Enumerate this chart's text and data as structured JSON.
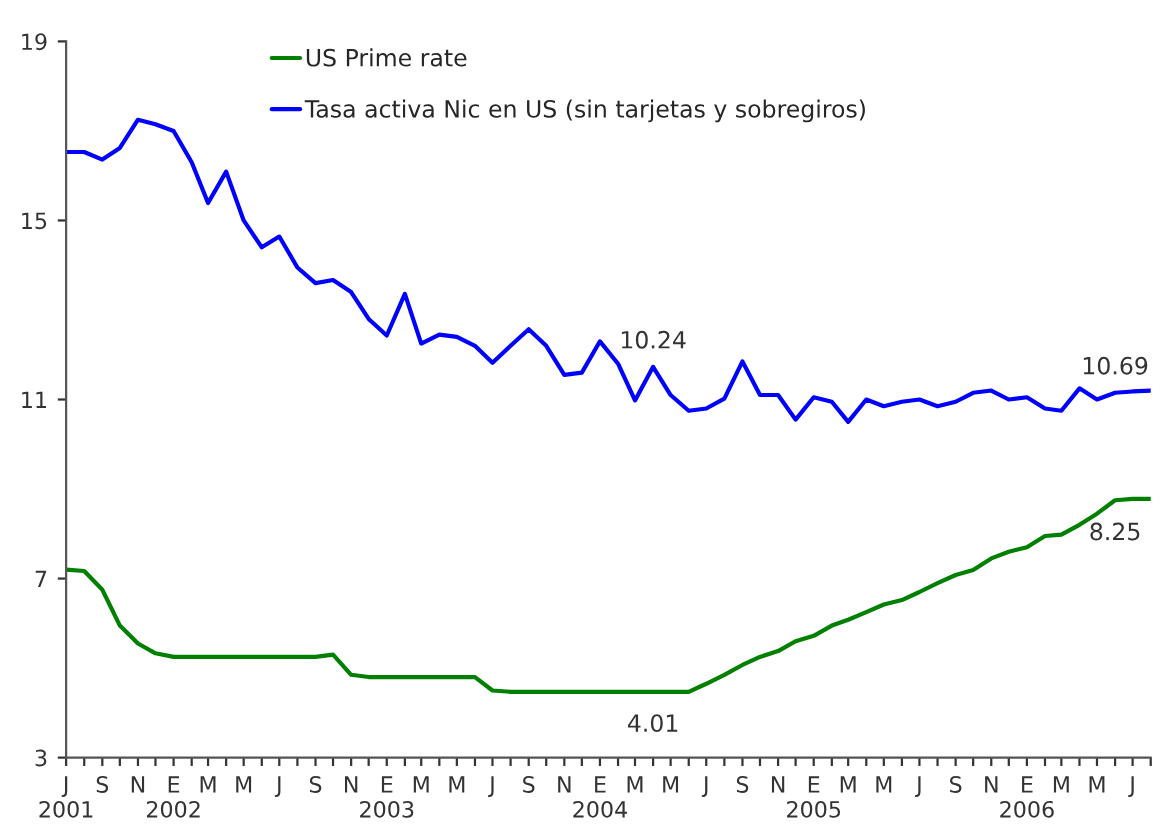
{
  "chart_data": {
    "type": "line",
    "x": [
      "2001-07",
      "2001-08",
      "2001-09",
      "2001-10",
      "2001-11",
      "2001-12",
      "2002-01",
      "2002-02",
      "2002-03",
      "2002-04",
      "2002-05",
      "2002-06",
      "2002-07",
      "2002-08",
      "2002-09",
      "2002-10",
      "2002-11",
      "2002-12",
      "2003-01",
      "2003-02",
      "2003-03",
      "2003-04",
      "2003-05",
      "2003-06",
      "2003-07",
      "2003-08",
      "2003-09",
      "2003-10",
      "2003-11",
      "2003-12",
      "2004-01",
      "2004-02",
      "2004-03",
      "2004-04",
      "2004-05",
      "2004-06",
      "2004-07",
      "2004-08",
      "2004-09",
      "2004-10",
      "2004-11",
      "2004-12",
      "2005-01",
      "2005-02",
      "2005-03",
      "2005-04",
      "2005-05",
      "2005-06",
      "2005-07",
      "2005-08",
      "2005-09",
      "2005-10",
      "2005-11",
      "2005-12",
      "2006-01",
      "2006-02",
      "2006-03",
      "2006-04",
      "2006-05",
      "2006-06",
      "2006-07",
      "2006-08"
    ],
    "series": [
      {
        "name": "US Prime rate",
        "color": "#008000",
        "values": [
          7.2,
          7.17,
          6.75,
          5.95,
          5.55,
          5.33,
          5.25,
          5.25,
          5.25,
          5.25,
          5.25,
          5.25,
          5.25,
          5.25,
          5.25,
          5.3,
          4.85,
          4.8,
          4.8,
          4.8,
          4.8,
          4.8,
          4.8,
          4.8,
          4.5,
          4.47,
          4.47,
          4.47,
          4.47,
          4.47,
          4.47,
          4.47,
          4.47,
          4.47,
          4.47,
          4.47,
          4.65,
          4.85,
          5.07,
          5.25,
          5.38,
          5.6,
          5.72,
          5.95,
          6.08,
          6.25,
          6.42,
          6.52,
          6.7,
          6.9,
          7.08,
          7.19,
          7.45,
          7.6,
          7.7,
          7.95,
          7.98,
          8.2,
          8.45,
          8.75,
          8.78,
          8.78
        ]
      },
      {
        "name": "Tasa activa Nic en US (sin tarjetas y sobregiros)",
        "color": "#0000ff",
        "values": [
          16.53,
          16.53,
          16.36,
          16.62,
          17.25,
          17.15,
          17.0,
          16.3,
          15.39,
          16.09,
          15.0,
          14.4,
          14.64,
          13.95,
          13.6,
          13.67,
          13.4,
          12.8,
          12.43,
          13.36,
          12.25,
          12.45,
          12.4,
          12.2,
          11.82,
          12.2,
          12.57,
          12.2,
          11.55,
          11.6,
          12.3,
          11.8,
          10.98,
          11.73,
          11.1,
          10.75,
          10.8,
          11.02,
          11.85,
          11.1,
          11.1,
          10.55,
          11.05,
          10.95,
          10.5,
          11.0,
          10.85,
          10.95,
          11.0,
          10.85,
          10.95,
          11.15,
          11.2,
          11.0,
          11.05,
          10.8,
          10.75,
          11.25,
          11.0,
          11.15,
          11.18,
          11.2
        ]
      }
    ],
    "xlim": [
      "2001-07",
      "2006-08"
    ],
    "xticks": [
      {
        "value": "2001-07",
        "label": "J\n2001"
      },
      {
        "value": "2001-08",
        "label": null
      },
      {
        "value": "2001-09",
        "label": "S"
      },
      {
        "value": "2001-10",
        "label": null
      },
      {
        "value": "2001-11",
        "label": "N"
      },
      {
        "value": "2001-12",
        "label": null
      },
      {
        "value": "2002-01",
        "label": "E\n2002"
      },
      {
        "value": "2002-02",
        "label": null
      },
      {
        "value": "2002-03",
        "label": "M"
      },
      {
        "value": "2002-04",
        "label": null
      },
      {
        "value": "2002-05",
        "label": "M"
      },
      {
        "value": "2002-06",
        "label": null
      },
      {
        "value": "2002-07",
        "label": "J"
      },
      {
        "value": "2002-08",
        "label": null
      },
      {
        "value": "2002-09",
        "label": "S"
      },
      {
        "value": "2002-10",
        "label": null
      },
      {
        "value": "2002-11",
        "label": "N"
      },
      {
        "value": "2002-12",
        "label": null
      },
      {
        "value": "2003-01",
        "label": "E\n2003"
      },
      {
        "value": "2003-02",
        "label": null
      },
      {
        "value": "2003-03",
        "label": "M"
      },
      {
        "value": "2003-04",
        "label": null
      },
      {
        "value": "2003-05",
        "label": "M"
      },
      {
        "value": "2003-06",
        "label": null
      },
      {
        "value": "2003-07",
        "label": "J"
      },
      {
        "value": "2003-08",
        "label": null
      },
      {
        "value": "2003-09",
        "label": "S"
      },
      {
        "value": "2003-10",
        "label": null
      },
      {
        "value": "2003-11",
        "label": "N"
      },
      {
        "value": "2003-12",
        "label": null
      },
      {
        "value": "2004-01",
        "label": "E\n2004"
      },
      {
        "value": "2004-02",
        "label": null
      },
      {
        "value": "2004-03",
        "label": "M"
      },
      {
        "value": "2004-04",
        "label": null
      },
      {
        "value": "2004-05",
        "label": "M"
      },
      {
        "value": "2004-06",
        "label": null
      },
      {
        "value": "2004-07",
        "label": "J"
      },
      {
        "value": "2004-08",
        "label": null
      },
      {
        "value": "2004-09",
        "label": "S"
      },
      {
        "value": "2004-10",
        "label": null
      },
      {
        "value": "2004-11",
        "label": "N"
      },
      {
        "value": "2004-12",
        "label": null
      },
      {
        "value": "2005-01",
        "label": "E\n2005"
      },
      {
        "value": "2005-02",
        "label": null
      },
      {
        "value": "2005-03",
        "label": "M"
      },
      {
        "value": "2005-04",
        "label": null
      },
      {
        "value": "2005-05",
        "label": "M"
      },
      {
        "value": "2005-06",
        "label": null
      },
      {
        "value": "2005-07",
        "label": "J"
      },
      {
        "value": "2005-08",
        "label": null
      },
      {
        "value": "2005-09",
        "label": "S"
      },
      {
        "value": "2005-10",
        "label": null
      },
      {
        "value": "2005-11",
        "label": "N"
      },
      {
        "value": "2005-12",
        "label": null
      },
      {
        "value": "2006-01",
        "label": "E\n2006"
      },
      {
        "value": "2006-02",
        "label": null
      },
      {
        "value": "2006-03",
        "label": "M"
      },
      {
        "value": "2006-04",
        "label": null
      },
      {
        "value": "2006-05",
        "label": "M"
      },
      {
        "value": "2006-06",
        "label": null
      },
      {
        "value": "2006-07",
        "label": "J"
      },
      {
        "value": "2006-08",
        "label": null
      }
    ],
    "ylim": [
      3,
      19
    ],
    "yticks": [
      3,
      7,
      11,
      15,
      19
    ],
    "grid": false,
    "legend": "top",
    "marker": "none",
    "line_style": "solid",
    "annotations": [
      {
        "text": "10.24",
        "x": "2004-04",
        "y": 11.73
      },
      {
        "text": "10.69",
        "x": "2006-06",
        "y": 11.15
      },
      {
        "text": "4.01",
        "x": "2004-04",
        "y": 4.47
      },
      {
        "text": "8.25",
        "x": "2006-06",
        "y": 8.75
      }
    ]
  }
}
